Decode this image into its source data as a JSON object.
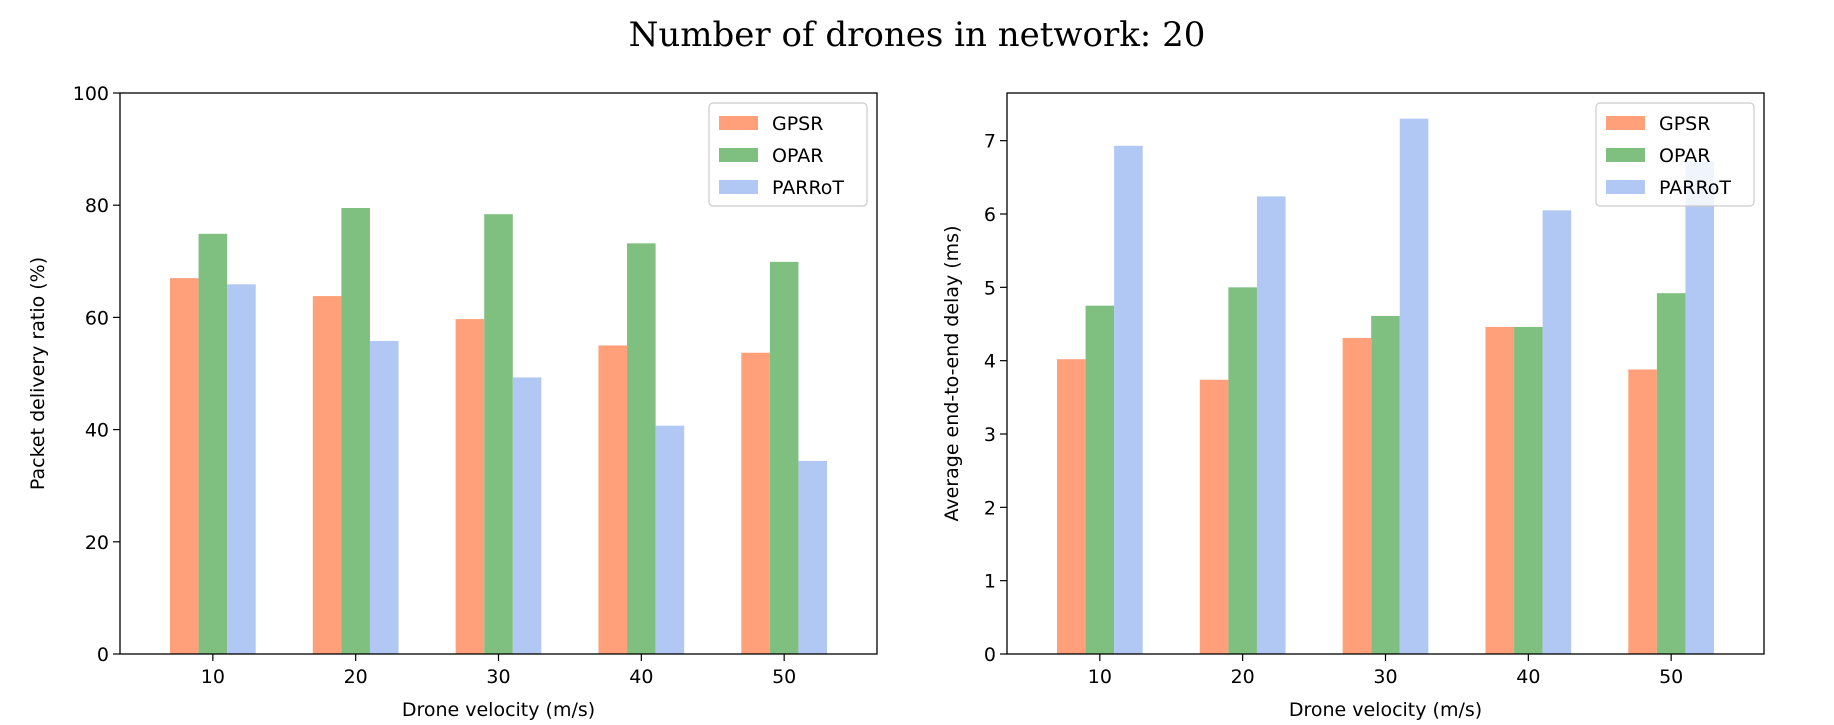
{
  "suptitle": "Number of drones in network: 20",
  "colors": {
    "GPSR": "#FFA07A",
    "OPAR": "#7FBF7F",
    "PARRoT": "#B0C8F3"
  },
  "chart_data": [
    {
      "type": "bar",
      "title": "",
      "xlabel": "Drone velocity (m/s)",
      "ylabel": "Packet delivery ratio (%)",
      "categories": [
        "10",
        "20",
        "30",
        "40",
        "50"
      ],
      "ylim": [
        0,
        100
      ],
      "yticks": [
        0,
        20,
        40,
        60,
        80,
        100
      ],
      "legend_position": "top-right",
      "series": [
        {
          "name": "GPSR",
          "values": [
            67,
            63.8,
            59.7,
            55,
            53.7
          ]
        },
        {
          "name": "OPAR",
          "values": [
            74.9,
            79.5,
            78.4,
            73.2,
            69.9
          ]
        },
        {
          "name": "PARRoT",
          "values": [
            65.9,
            55.8,
            49.3,
            40.7,
            34.4
          ]
        }
      ]
    },
    {
      "type": "bar",
      "title": "",
      "xlabel": "Drone velocity (m/s)",
      "ylabel": "Average end-to-end delay (ms)",
      "categories": [
        "10",
        "20",
        "30",
        "40",
        "50"
      ],
      "ylim": [
        0,
        7.65
      ],
      "yticks": [
        0,
        1,
        2,
        3,
        4,
        5,
        6,
        7
      ],
      "legend_position": "top-right",
      "series": [
        {
          "name": "GPSR",
          "values": [
            4.02,
            3.74,
            4.31,
            4.46,
            3.88
          ]
        },
        {
          "name": "OPAR",
          "values": [
            4.75,
            5.0,
            4.61,
            4.46,
            4.92
          ]
        },
        {
          "name": "PARRoT",
          "values": [
            6.93,
            6.24,
            7.3,
            6.05,
            6.72
          ]
        }
      ]
    }
  ]
}
